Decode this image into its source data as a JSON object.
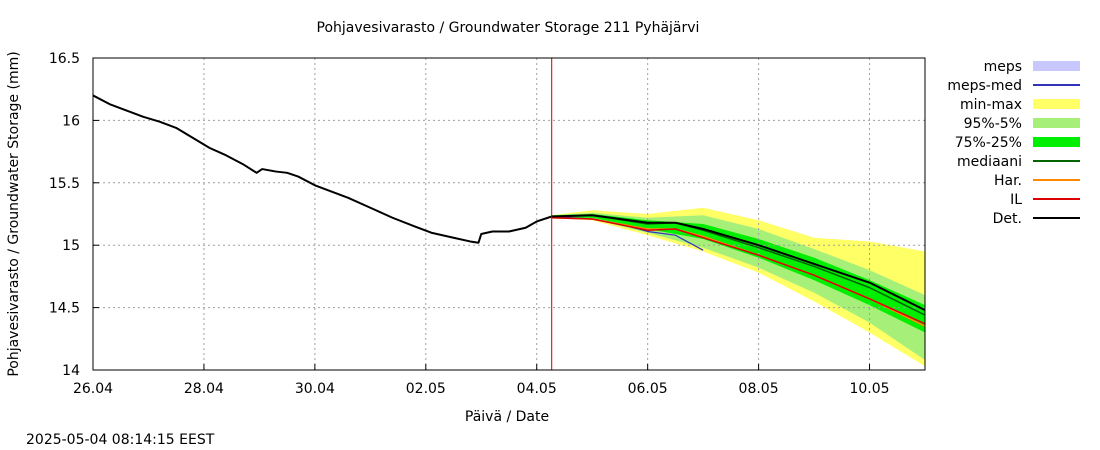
{
  "chart_data": {
    "type": "area",
    "title": "Pohjavesivarasto / Groundwater Storage   211 Pyhäjärvi",
    "xlabel": "Päivä / Date",
    "ylabel": "Pohjavesivarasto / Groundwater Storage (mm)",
    "timestamp": "2025-05-04 08:14:15 EEST",
    "xlim": [
      0,
      15
    ],
    "ylim": [
      14,
      16.5
    ],
    "grid": true,
    "legend_position": "right",
    "x_unit_note": "x in days from 26.04",
    "xticks": [
      {
        "x": 0,
        "label": "26.04"
      },
      {
        "x": 2,
        "label": "28.04"
      },
      {
        "x": 4,
        "label": "30.04"
      },
      {
        "x": 6,
        "label": "02.05"
      },
      {
        "x": 8,
        "label": "04.05"
      },
      {
        "x": 10,
        "label": "06.05"
      },
      {
        "x": 12,
        "label": "08.05"
      },
      {
        "x": 14,
        "label": "10.05"
      }
    ],
    "yticks": [
      {
        "y": 14,
        "label": "14"
      },
      {
        "y": 14.5,
        "label": "14.5"
      },
      {
        "y": 15,
        "label": "15"
      },
      {
        "y": 15.5,
        "label": "15.5"
      },
      {
        "y": 16,
        "label": "16"
      },
      {
        "y": 16.5,
        "label": "16.5"
      }
    ],
    "forecast_start": 8.27,
    "bands": [
      {
        "name": "min-max",
        "color": "#ffff66",
        "x": [
          8.27,
          9.0,
          10.0,
          11.0,
          12.0,
          13.0,
          14.0,
          15.0
        ],
        "upper": [
          15.24,
          15.28,
          15.25,
          15.3,
          15.2,
          15.06,
          15.03,
          14.95
        ],
        "lower": [
          15.22,
          15.2,
          15.08,
          14.95,
          14.78,
          14.55,
          14.3,
          14.03
        ]
      },
      {
        "name": "95%-5%",
        "color": "#a6f07a",
        "x": [
          8.27,
          9.0,
          10.0,
          11.0,
          12.0,
          13.0,
          14.0,
          15.0
        ],
        "upper": [
          15.24,
          15.26,
          15.22,
          15.24,
          15.13,
          14.97,
          14.8,
          14.6
        ],
        "lower": [
          15.22,
          15.21,
          15.1,
          14.98,
          14.82,
          14.62,
          14.38,
          14.08
        ]
      },
      {
        "name": "75%-25%",
        "color": "#00ee00",
        "x": [
          8.27,
          9.0,
          10.0,
          11.0,
          12.0,
          13.0,
          14.0,
          15.0
        ],
        "upper": [
          15.24,
          15.25,
          15.2,
          15.17,
          15.05,
          14.9,
          14.72,
          14.52
        ],
        "lower": [
          15.22,
          15.22,
          15.13,
          15.05,
          14.9,
          14.72,
          14.52,
          14.3
        ]
      }
    ],
    "lines": [
      {
        "name": "meps-med",
        "color": "#3333bb",
        "width": 1.2,
        "x": [
          8.27,
          9.0,
          9.5,
          10.0,
          10.5,
          11.0
        ],
        "y": [
          15.23,
          15.21,
          15.17,
          15.11,
          15.08,
          14.96
        ]
      },
      {
        "name": "mediaani",
        "color": "#006400",
        "width": 1.5,
        "x": [
          8.27,
          9.0,
          10.0,
          10.5,
          11.0,
          12.0,
          13.0,
          14.0,
          15.0
        ],
        "y": [
          15.23,
          15.24,
          15.17,
          15.18,
          15.12,
          14.98,
          14.83,
          14.66,
          14.44
        ]
      },
      {
        "name": "Har.",
        "color": "#ff8800",
        "width": 1.5,
        "x": [
          8.27,
          9.0,
          10.0,
          10.5,
          11.0,
          12.0,
          13.0,
          14.0,
          15.0
        ],
        "y": [
          15.22,
          15.21,
          15.13,
          15.13,
          15.07,
          14.92,
          14.76,
          14.57,
          14.35
        ]
      },
      {
        "name": "IL",
        "color": "#dd0000",
        "width": 1.5,
        "x": [
          8.27,
          9.0,
          10.0,
          10.5,
          11.0,
          12.0,
          13.0,
          14.0,
          15.0
        ],
        "y": [
          15.22,
          15.21,
          15.12,
          15.13,
          15.06,
          14.92,
          14.76,
          14.57,
          14.37
        ]
      },
      {
        "name": "Det.",
        "color": "#000000",
        "width": 2,
        "x": [
          0,
          0.3,
          0.6,
          0.9,
          1.2,
          1.5,
          1.8,
          2.1,
          2.4,
          2.7,
          2.95,
          3.05,
          3.3,
          3.5,
          3.7,
          4.0,
          4.3,
          4.6,
          5.0,
          5.4,
          5.8,
          6.1,
          6.5,
          6.8,
          6.95,
          7.0,
          7.2,
          7.5,
          7.8,
          8.0,
          8.27,
          9.0,
          10.0,
          10.5,
          11.0,
          12.0,
          13.0,
          14.0,
          15.0
        ],
        "y": [
          16.2,
          16.13,
          16.08,
          16.03,
          15.99,
          15.94,
          15.86,
          15.78,
          15.72,
          15.65,
          15.58,
          15.61,
          15.59,
          15.58,
          15.55,
          15.48,
          15.43,
          15.38,
          15.3,
          15.22,
          15.15,
          15.1,
          15.06,
          15.03,
          15.02,
          15.09,
          15.11,
          15.11,
          15.14,
          15.19,
          15.23,
          15.24,
          15.18,
          15.18,
          15.13,
          15.0,
          14.85,
          14.7,
          14.48
        ]
      }
    ],
    "legend": [
      {
        "label": "meps",
        "kind": "box",
        "color": "#c8c8ff"
      },
      {
        "label": "meps-med",
        "kind": "line",
        "color": "#3333bb"
      },
      {
        "label": "min-max",
        "kind": "box",
        "color": "#ffff66"
      },
      {
        "label": "95%-5%",
        "kind": "box",
        "color": "#a6f07a"
      },
      {
        "label": "75%-25%",
        "kind": "box",
        "color": "#00ee00"
      },
      {
        "label": "mediaani",
        "kind": "line",
        "color": "#006400"
      },
      {
        "label": "Har.",
        "kind": "line",
        "color": "#ff8800"
      },
      {
        "label": "IL",
        "kind": "line",
        "color": "#dd0000"
      },
      {
        "label": "Det.",
        "kind": "line",
        "color": "#000000"
      }
    ]
  }
}
